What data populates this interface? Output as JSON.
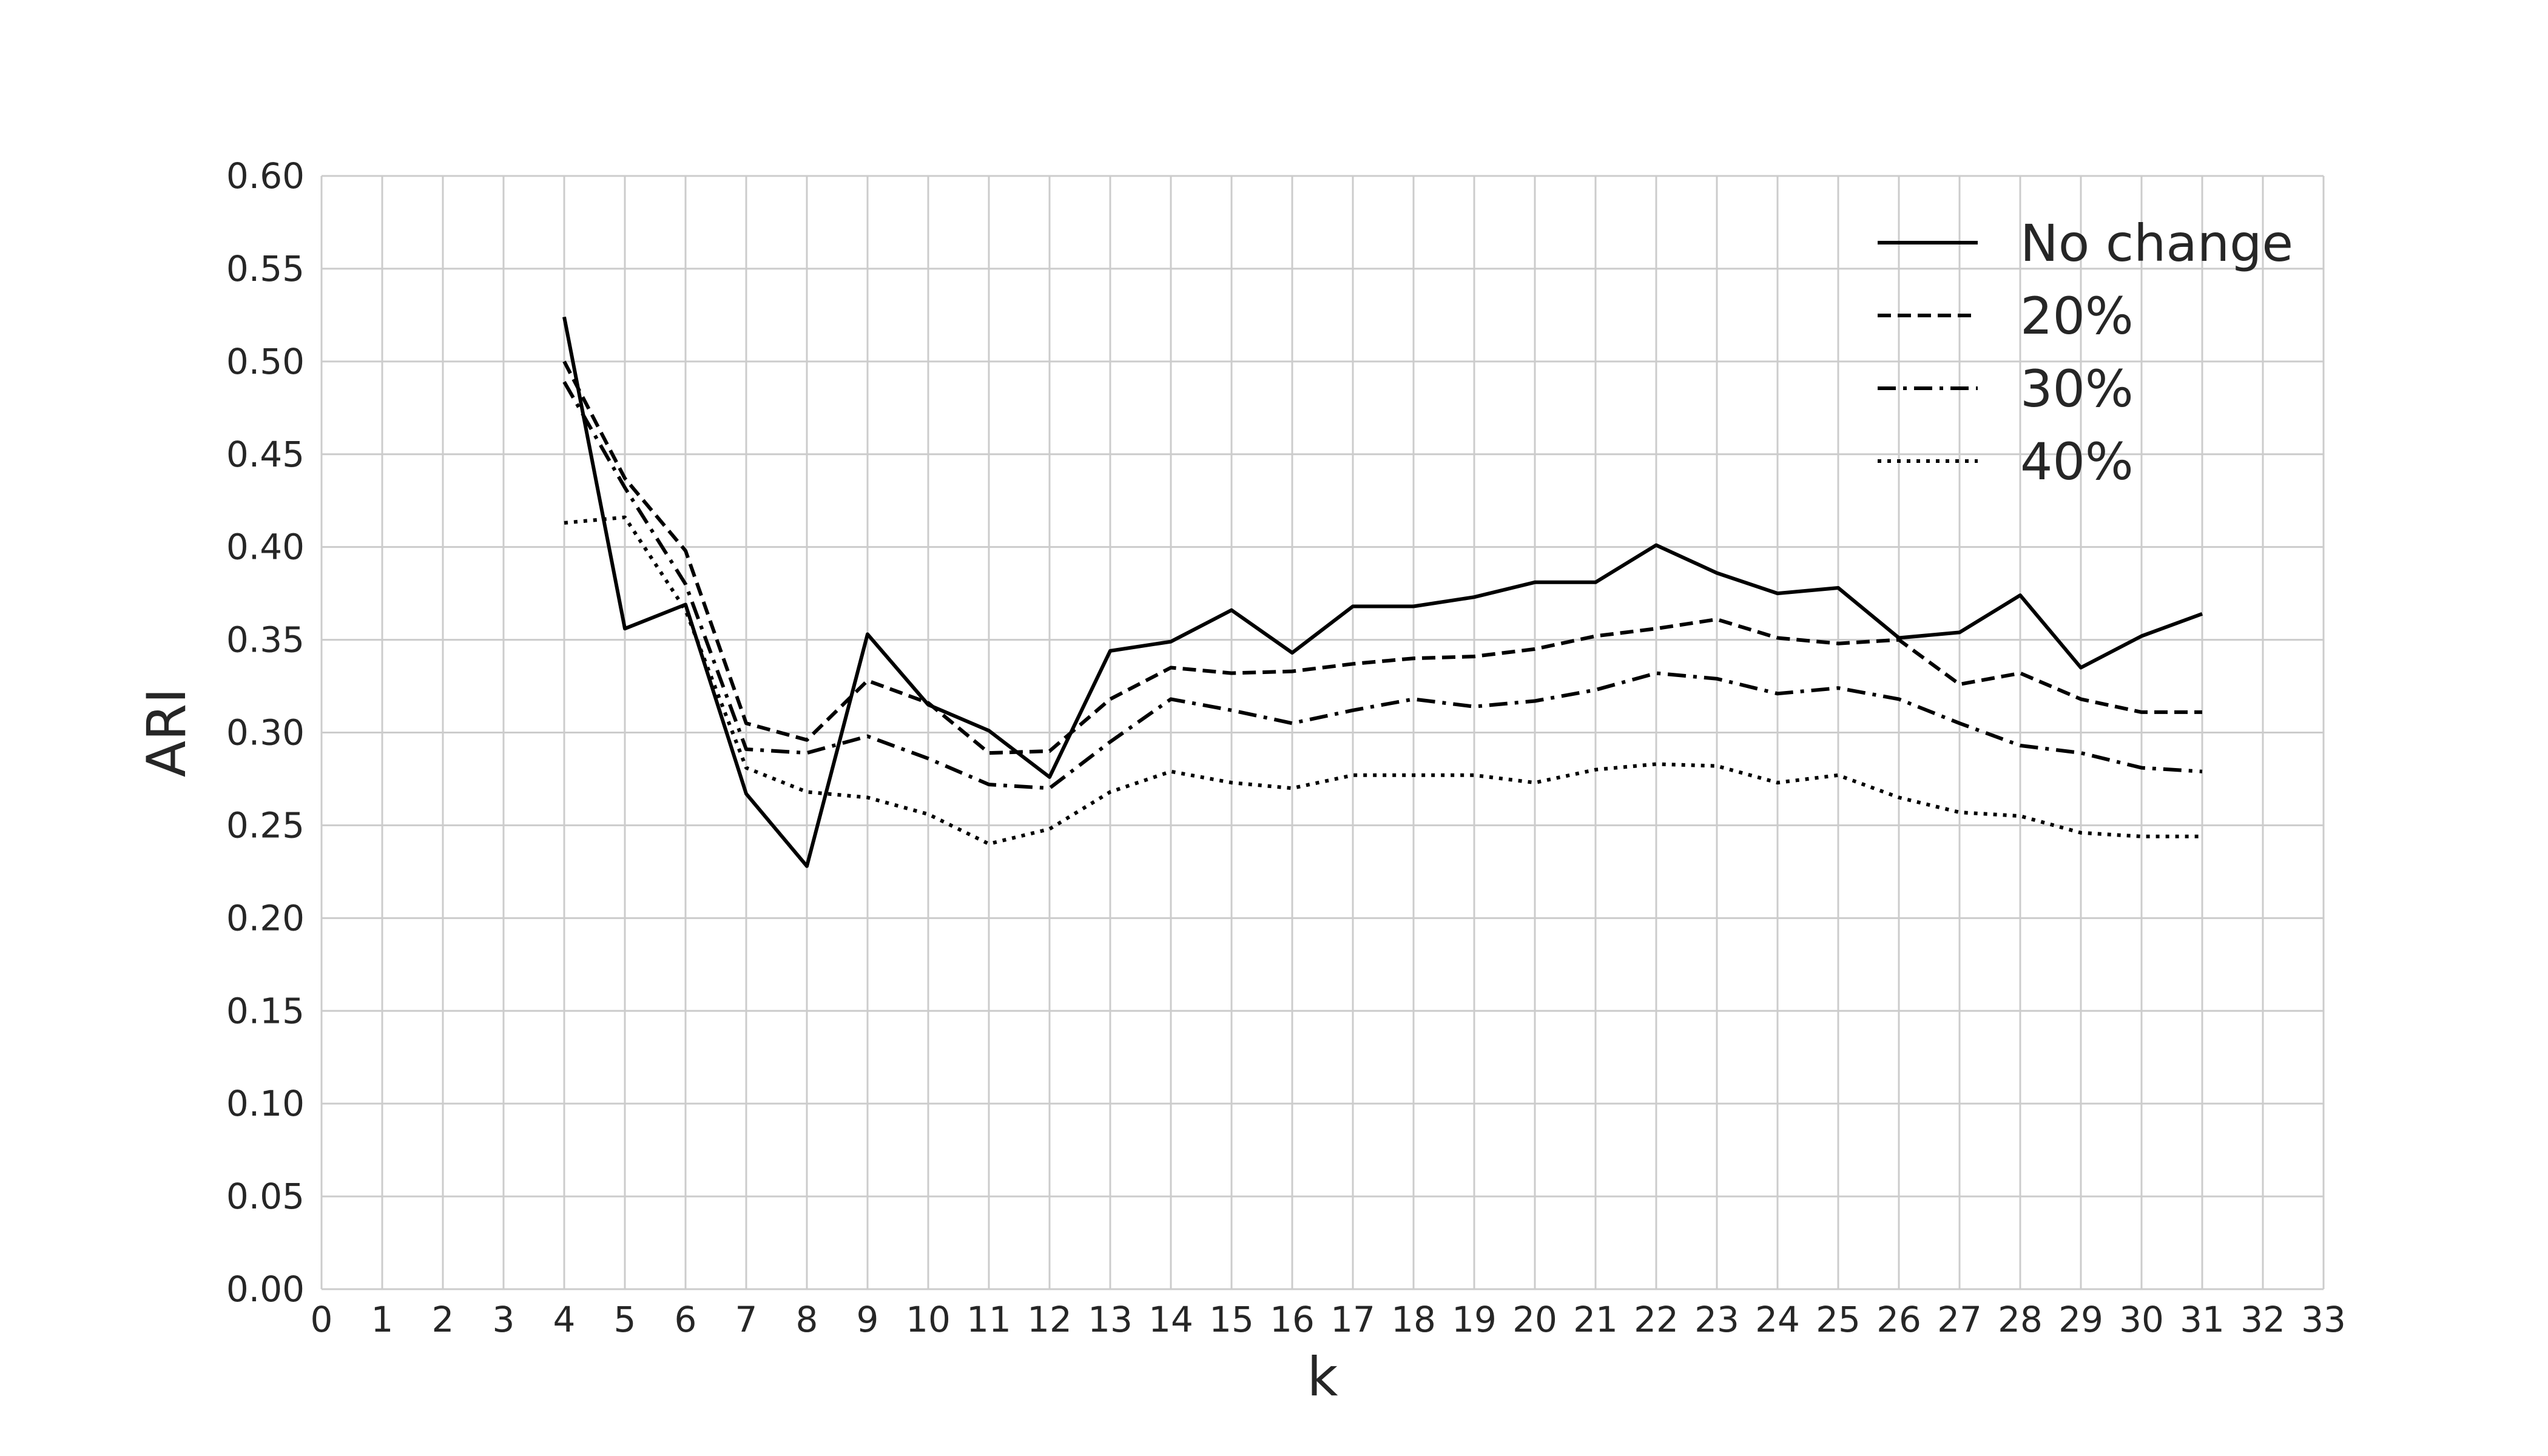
{
  "chart_data": {
    "type": "line",
    "xlabel": "k",
    "ylabel": "ARI",
    "xlim": [
      0,
      33
    ],
    "ylim": [
      0.0,
      0.6
    ],
    "x_ticks": [
      "0",
      "1",
      "2",
      "3",
      "4",
      "5",
      "6",
      "7",
      "8",
      "9",
      "10",
      "11",
      "12",
      "13",
      "14",
      "15",
      "16",
      "17",
      "18",
      "19",
      "20",
      "21",
      "22",
      "23",
      "24",
      "25",
      "26",
      "27",
      "28",
      "29",
      "30",
      "31",
      "32",
      "33"
    ],
    "y_ticks": [
      "0.00",
      "0.05",
      "0.10",
      "0.15",
      "0.20",
      "0.25",
      "0.30",
      "0.35",
      "0.40",
      "0.45",
      "0.50",
      "0.55",
      "0.60"
    ],
    "grid": true,
    "legend_position": "top-right",
    "x": [
      4,
      5,
      6,
      7,
      8,
      9,
      10,
      11,
      12,
      13,
      14,
      15,
      16,
      17,
      18,
      19,
      20,
      21,
      22,
      23,
      24,
      25,
      26,
      27,
      28,
      29,
      30,
      31
    ],
    "series": [
      {
        "name": "No change",
        "dash": "solid",
        "values": [
          0.524,
          0.356,
          0.369,
          0.267,
          0.228,
          0.353,
          0.315,
          0.301,
          0.276,
          0.344,
          0.349,
          0.366,
          0.343,
          0.368,
          0.368,
          0.373,
          0.381,
          0.381,
          0.401,
          0.386,
          0.375,
          0.378,
          0.351,
          0.354,
          0.374,
          0.335,
          0.352,
          0.364
        ]
      },
      {
        "name": "20%",
        "dash": "dashed",
        "values": [
          0.5,
          0.437,
          0.398,
          0.305,
          0.296,
          0.328,
          0.316,
          0.289,
          0.29,
          0.318,
          0.335,
          0.332,
          0.333,
          0.337,
          0.34,
          0.341,
          0.345,
          0.352,
          0.356,
          0.361,
          0.351,
          0.348,
          0.35,
          0.326,
          0.332,
          0.318,
          0.311,
          0.311
        ]
      },
      {
        "name": "30%",
        "dash": "dashdot",
        "values": [
          0.489,
          0.432,
          0.38,
          0.291,
          0.289,
          0.298,
          0.286,
          0.272,
          0.27,
          0.295,
          0.318,
          0.312,
          0.305,
          0.312,
          0.318,
          0.314,
          0.317,
          0.323,
          0.332,
          0.329,
          0.321,
          0.324,
          0.318,
          0.305,
          0.293,
          0.289,
          0.281,
          0.279
        ]
      },
      {
        "name": "40%",
        "dash": "dotted",
        "values": [
          0.413,
          0.416,
          0.366,
          0.281,
          0.268,
          0.265,
          0.256,
          0.24,
          0.248,
          0.268,
          0.279,
          0.273,
          0.27,
          0.277,
          0.277,
          0.277,
          0.273,
          0.28,
          0.283,
          0.282,
          0.273,
          0.277,
          0.265,
          0.257,
          0.255,
          0.246,
          0.244,
          0.244
        ]
      }
    ]
  }
}
